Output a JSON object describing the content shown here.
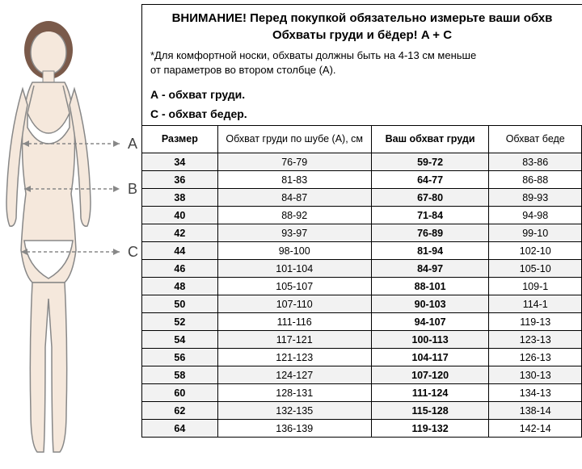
{
  "header": {
    "title": "ВНИМАНИЕ! Перед покупкой обязательно измерьте ваши обхв",
    "subtitle": "Обхваты груди и бёдер! A + C"
  },
  "note": {
    "line1": "*Для комфортной носки, обхваты должны быть на 4-13 см меньше",
    "line2": "от параметров во втором столбце (А)."
  },
  "labels": {
    "a": "А - обхват груди.",
    "c": "С - обхват бедер."
  },
  "table": {
    "columns": [
      "Размер",
      "Обхват груди по шубе (А), см",
      "Ваш обхват груди",
      "Обхват беде"
    ],
    "rows": [
      [
        "34",
        "76-79",
        "59-72",
        "83-86"
      ],
      [
        "36",
        "81-83",
        "64-77",
        "86-88"
      ],
      [
        "38",
        "84-87",
        "67-80",
        "89-93"
      ],
      [
        "40",
        "88-92",
        "71-84",
        "94-98"
      ],
      [
        "42",
        "93-97",
        "76-89",
        "99-10"
      ],
      [
        "44",
        "98-100",
        "81-94",
        "102-10"
      ],
      [
        "46",
        "101-104",
        "84-97",
        "105-10"
      ],
      [
        "48",
        "105-107",
        "88-101",
        "109-1"
      ],
      [
        "50",
        "107-110",
        "90-103",
        "114-1"
      ],
      [
        "52",
        "111-116",
        "94-107",
        "119-13"
      ],
      [
        "54",
        "117-121",
        "100-113",
        "123-13"
      ],
      [
        "56",
        "121-123",
        "104-117",
        "126-13"
      ],
      [
        "58",
        "124-127",
        "107-120",
        "130-13"
      ],
      [
        "60",
        "128-131",
        "111-124",
        "134-13"
      ],
      [
        "62",
        "132-135",
        "115-128",
        "138-14"
      ],
      [
        "64",
        "136-139",
        "119-132",
        "142-14"
      ]
    ]
  },
  "figure": {
    "labels": {
      "a": "A",
      "b": "B",
      "c": "C"
    },
    "colors": {
      "skin": "#f5e8dc",
      "hair": "#7a5a4a",
      "outline": "#888888",
      "garment": "#ffffff",
      "arrow": "#888888"
    }
  }
}
